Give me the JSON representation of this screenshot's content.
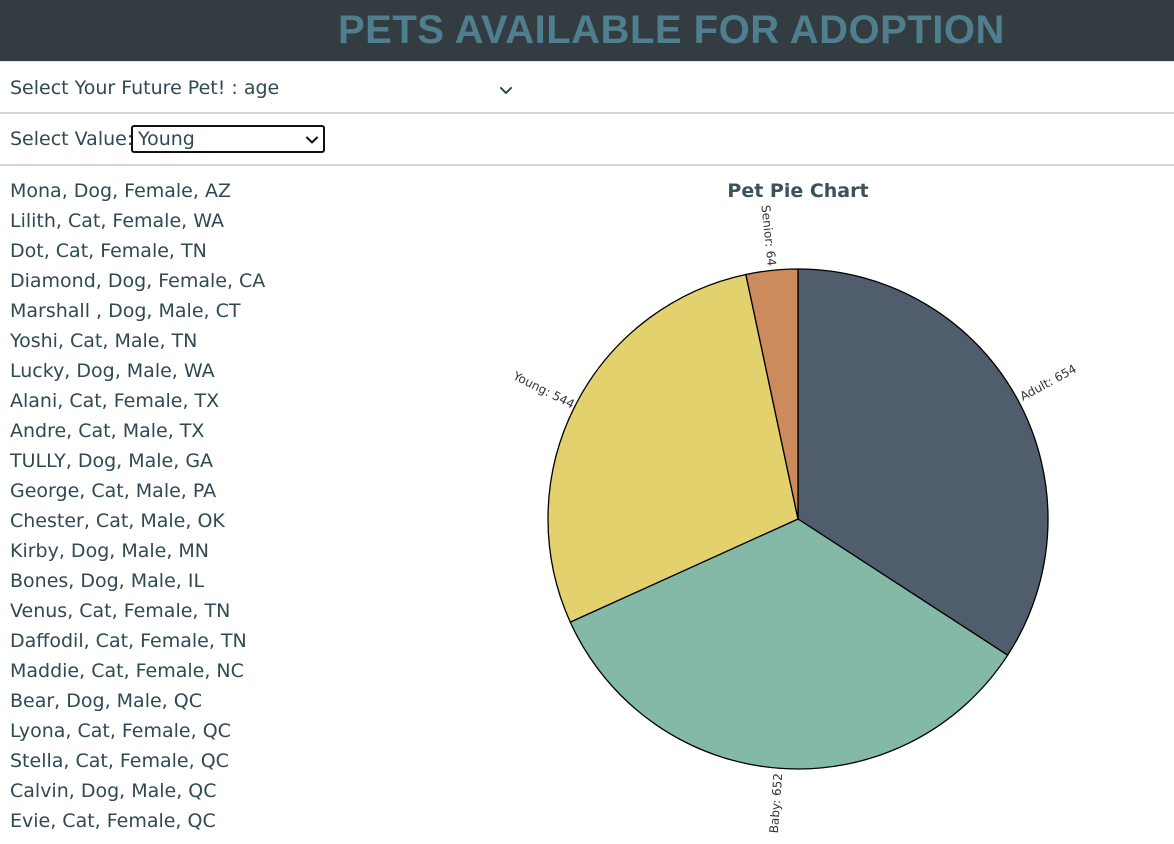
{
  "header": {
    "title": "PETS AVAILABLE FOR ADOPTION"
  },
  "filter": {
    "label": "Select Your Future Pet! : age",
    "value_label": "Select Value:",
    "selected_value": "Young"
  },
  "pets": [
    "Mona, Dog, Female, AZ",
    "Lilith, Cat, Female, WA",
    "Dot, Cat, Female, TN",
    "Diamond, Dog, Female, CA",
    "Marshall , Dog, Male, CT",
    "Yoshi, Cat, Male, TN",
    "Lucky, Dog, Male, WA",
    "Alani, Cat, Female, TX",
    "Andre, Cat, Male, TX",
    "TULLY, Dog, Male, GA",
    "George, Cat, Male, PA",
    "Chester, Cat, Male, OK",
    "Kirby, Dog, Male, MN",
    "Bones, Dog, Male, IL",
    "Venus, Cat, Female, TN",
    "Daffodil, Cat, Female, TN",
    "Maddie, Cat, Female, NC",
    "Bear, Dog, Male, QC",
    "Lyona, Cat, Female, QC",
    "Stella, Cat, Female, QC",
    "Calvin, Dog, Male, QC",
    "Evie, Cat, Female, QC"
  ],
  "colors": {
    "header_bg": "#333c40",
    "title_text": "#4f7f8e",
    "body_text": "#2f4a52"
  },
  "icons": {
    "dropdown": "chevron-down-icon"
  },
  "chart_data": {
    "type": "pie",
    "title": "Pet Pie Chart",
    "slices": [
      {
        "label": "Adult: 654",
        "name": "Adult",
        "value": 654,
        "color": "#4f5d6c"
      },
      {
        "label": "Baby: 652",
        "name": "Baby",
        "value": 652,
        "color": "#83b9a6"
      },
      {
        "label": "Young: 544",
        "name": "Young",
        "value": 544,
        "color": "#e2d16d"
      },
      {
        "label": "Senior: 64",
        "name": "Senior",
        "value": 64,
        "color": "#cc8b5d"
      }
    ]
  }
}
